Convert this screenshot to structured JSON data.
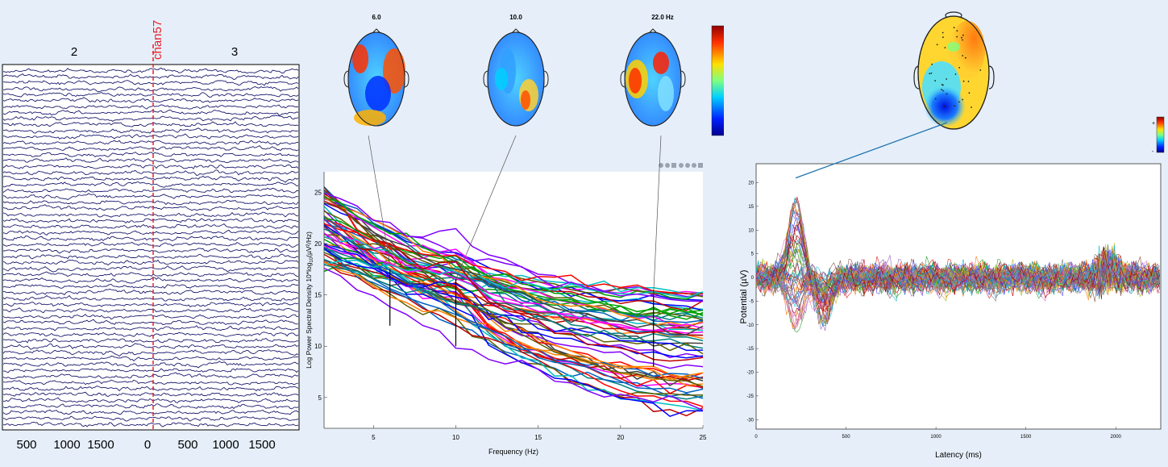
{
  "chart_data": [
    {
      "type": "line",
      "name": "eeg-scroll",
      "epoch_labels": [
        "2",
        "3"
      ],
      "marker_label": "chan57",
      "x_tick_labels": [
        "500",
        "1000",
        "1500",
        "0",
        "500",
        "1000",
        "1500"
      ],
      "channel_count": 60,
      "colors": {
        "trace": "#1a1a6e",
        "marker": "#e8202a"
      }
    },
    {
      "type": "line",
      "name": "spectra",
      "xlabel": "Frequency (Hz)",
      "ylabel": "Log Power Spectral Density 10*log",
      "ylabel_sub": "10",
      "ylabel_units": "(µV²/Hz)",
      "xlim": [
        2,
        25
      ],
      "ylim": [
        2,
        27
      ],
      "x_ticks": [
        5,
        10,
        15,
        20,
        25
      ],
      "y_ticks": [
        5,
        10,
        15,
        20,
        25
      ],
      "selected_freqs": [
        6,
        10,
        22
      ],
      "topo_labels": [
        "6.0",
        "10.0",
        "22.0 Hz"
      ],
      "colorbar_max_label": "+",
      "colorbar_min_label": "-",
      "toolbar_icons": [
        "brush-icon",
        "rotate-icon",
        "data-cursor-icon",
        "hand-icon",
        "zoom-in-icon",
        "zoom-out-icon",
        "home-icon"
      ],
      "frequencies": [
        2,
        3,
        4,
        5,
        6,
        7,
        8,
        9,
        10,
        11,
        12,
        13,
        14,
        15,
        16,
        17,
        18,
        19,
        20,
        21,
        22,
        23,
        24,
        25
      ],
      "spectrum_start_db_range": [
        18,
        26
      ],
      "spectrum_end_db_range": [
        3.5,
        15.5
      ],
      "spectrum_count": 60
    },
    {
      "type": "line",
      "name": "erp",
      "xlabel": "Latency (ms)",
      "ylabel": "Potential (µV)",
      "xlim": [
        0,
        2250
      ],
      "ylim": [
        -32,
        24
      ],
      "x_ticks": [
        0,
        500,
        1000,
        1500,
        2000
      ],
      "y_ticks": [
        20,
        15,
        10,
        5,
        0,
        -5,
        -10,
        -15,
        -20,
        -25,
        -30
      ],
      "peak_latency": 220,
      "peak_value": 21,
      "colorbar_max_label": "+",
      "colorbar_min_label": "-",
      "channel_count": 60
    }
  ]
}
